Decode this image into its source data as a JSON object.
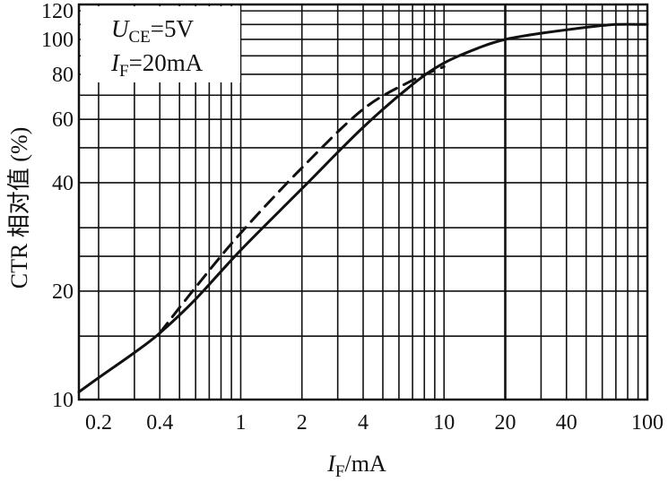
{
  "chart_data": {
    "type": "line",
    "x_scale": "log",
    "y_scale": "log",
    "xlim": [
      0.16,
      100
    ],
    "ylim": [
      10,
      125
    ],
    "grid": true,
    "xlabel": {
      "var": "I",
      "sub": "F",
      "unit": "/mA"
    },
    "ylabel": "CTR 相对值 (%)",
    "x_ticks": [
      {
        "value": 0.2,
        "label": "0.2"
      },
      {
        "value": 0.4,
        "label": "0.4"
      },
      {
        "value": 1,
        "label": "1"
      },
      {
        "value": 2,
        "label": "2"
      },
      {
        "value": 4,
        "label": "4"
      },
      {
        "value": 10,
        "label": "10"
      },
      {
        "value": 20,
        "label": "20"
      },
      {
        "value": 40,
        "label": "40"
      },
      {
        "value": 100,
        "label": "100"
      }
    ],
    "y_ticks": [
      {
        "value": 10,
        "label": "10"
      },
      {
        "value": 20,
        "label": "20"
      },
      {
        "value": 40,
        "label": "40"
      },
      {
        "value": 60,
        "label": "60"
      },
      {
        "value": 80,
        "label": "80"
      },
      {
        "value": 100,
        "label": "100"
      },
      {
        "value": 120,
        "label": "120"
      }
    ],
    "x_grid": [
      0.2,
      0.3,
      0.4,
      0.5,
      0.6,
      0.7,
      0.8,
      0.9,
      1,
      2,
      3,
      4,
      5,
      6,
      7,
      8,
      9,
      10,
      20,
      30,
      40,
      50,
      60,
      70,
      80,
      90,
      100
    ],
    "x_grid_bold": [
      20
    ],
    "y_grid": [
      10,
      15,
      20,
      25,
      30,
      40,
      50,
      60,
      70,
      80,
      90,
      100,
      110,
      120
    ],
    "annotations": [
      {
        "var": "U",
        "sub": "CE",
        "text": "=5V"
      },
      {
        "var": "I",
        "sub": "F",
        "text": "=20mA"
      }
    ],
    "series": [
      {
        "style": "solid",
        "points": [
          [
            0.16,
            10.5
          ],
          [
            0.2,
            11.5
          ],
          [
            0.3,
            13.5
          ],
          [
            0.4,
            15.3
          ],
          [
            0.6,
            19
          ],
          [
            1,
            26
          ],
          [
            2,
            38.5
          ],
          [
            4,
            57
          ],
          [
            7,
            75
          ],
          [
            10,
            86
          ],
          [
            15,
            95
          ],
          [
            20,
            100
          ],
          [
            30,
            104
          ],
          [
            50,
            108
          ],
          [
            70,
            110
          ],
          [
            100,
            110
          ]
        ]
      },
      {
        "style": "dashed",
        "points": [
          [
            0.4,
            15.3
          ],
          [
            0.6,
            20.5
          ],
          [
            1,
            29
          ],
          [
            2,
            44
          ],
          [
            4,
            64
          ],
          [
            7,
            77
          ],
          [
            10,
            84
          ]
        ]
      }
    ]
  }
}
